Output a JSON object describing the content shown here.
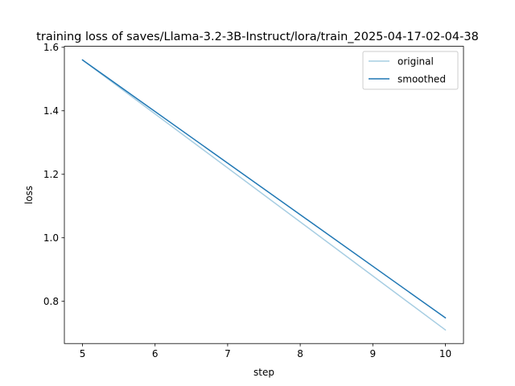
{
  "chart_data": {
    "type": "line",
    "title": "training loss of saves/Llama-3.2-3B-Instruct/lora/train_2025-04-17-02-04-38",
    "xlabel": "step",
    "ylabel": "loss",
    "xlim": [
      4.75,
      10.25
    ],
    "ylim": [
      0.667,
      1.603
    ],
    "xticks": [
      5,
      6,
      7,
      8,
      9,
      10
    ],
    "yticks": [
      0.8,
      1.0,
      1.2,
      1.4,
      1.6
    ],
    "xtick_labels": [
      "5",
      "6",
      "7",
      "8",
      "9",
      "10"
    ],
    "ytick_labels": [
      "0.8",
      "1.0",
      "1.2",
      "1.4",
      "1.6"
    ],
    "grid": false,
    "legend_position": "top-right",
    "series": [
      {
        "name": "original",
        "color": "#a6cde2",
        "x": [
          5,
          10
        ],
        "y": [
          1.56,
          0.71
        ]
      },
      {
        "name": "smoothed",
        "color": "#1f77b4",
        "x": [
          5,
          10
        ],
        "y": [
          1.56,
          0.748
        ]
      }
    ]
  }
}
